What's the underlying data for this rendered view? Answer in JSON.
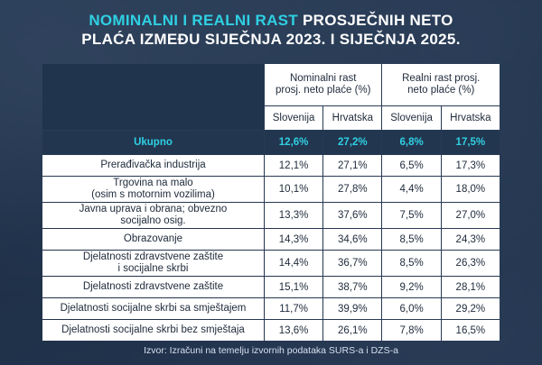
{
  "title": {
    "highlight": "NOMINALNI I REALNI RAST",
    "line1_rest": " PROSJEČNIH NETO",
    "line2": "PLAĆA IZMEĐU SIJEČNJA 2023. I SIJEČNJA 2025."
  },
  "table": {
    "groups": [
      {
        "label_line1": "Nominalni rast",
        "label_line2": "prosj. neto plaće (%)"
      },
      {
        "label_line1": "Realni rast prosj.",
        "label_line2": "neto plaće (%)"
      }
    ],
    "subheaders": [
      "Slovenija",
      "Hrvatska",
      "Slovenija",
      "Hrvatska"
    ],
    "total": {
      "category": "Ukupno",
      "values": [
        "12,6%",
        "27,2%",
        "6,8%",
        "17,5%"
      ]
    },
    "rows": [
      {
        "category_line1": "Prerađivačka industrija",
        "category_line2": "",
        "values": [
          "12,1%",
          "27,1%",
          "6,5%",
          "17,3%"
        ]
      },
      {
        "category_line1": "Trgovina na malo",
        "category_line2": "(osim s motornim vozilima)",
        "values": [
          "10,1%",
          "27,8%",
          "4,4%",
          "18,0%"
        ]
      },
      {
        "category_line1": "Javna uprava i obrana; obvezno",
        "category_line2": "socijalno osig.",
        "values": [
          "13,3%",
          "37,6%",
          "7,5%",
          "27,0%"
        ]
      },
      {
        "category_line1": "Obrazovanje",
        "category_line2": "",
        "values": [
          "14,3%",
          "34,6%",
          "8,5%",
          "24,3%"
        ]
      },
      {
        "category_line1": "Djelatnosti zdravstvene zaštite",
        "category_line2": "i socijalne skrbi",
        "values": [
          "14,4%",
          "36,7%",
          "8,5%",
          "26,3%"
        ]
      },
      {
        "category_line1": "Djelatnosti zdravstvene zaštite",
        "category_line2": "",
        "values": [
          "15,1%",
          "38,7%",
          "9,2%",
          "28,1%"
        ]
      },
      {
        "category_line1": "Djelatnosti socijalne skrbi sa smještajem",
        "category_line2": "",
        "values": [
          "11,7%",
          "39,9%",
          "6,0%",
          "29,2%"
        ]
      },
      {
        "category_line1": "Djelatnosti socijalne skrbi bez smještaja",
        "category_line2": "",
        "values": [
          "13,6%",
          "26,1%",
          "7,8%",
          "16,5%"
        ]
      }
    ]
  },
  "source": "Izvor: Izračuni na temelju izvornih podataka SURS-a i DZS-a",
  "colors": {
    "accent": "#2fd0e3",
    "cell": "#ffffff",
    "dark": "#22364f"
  }
}
